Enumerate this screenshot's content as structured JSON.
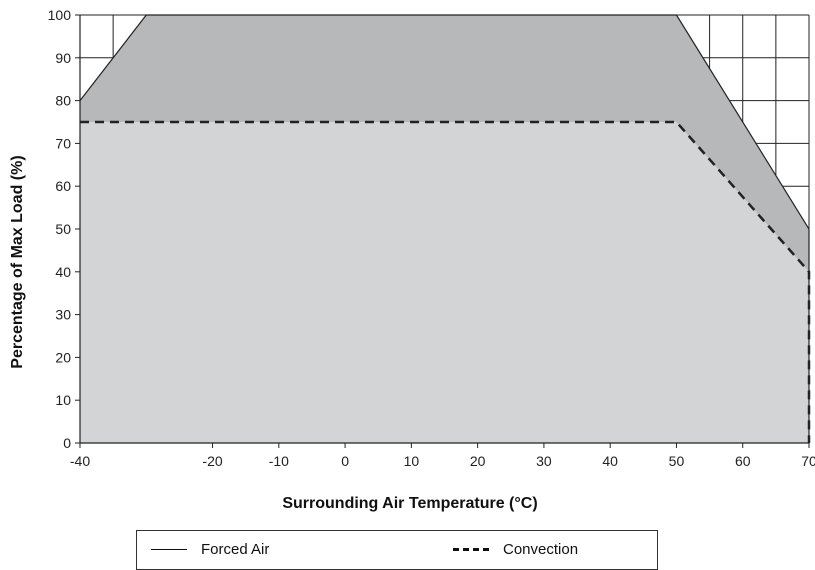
{
  "chart_data": {
    "type": "area",
    "xlabel": "Surrounding Air Temperature (°C)",
    "ylabel": "Percentage of Max Load (%)",
    "xlim": [
      -40,
      70
    ],
    "ylim": [
      0,
      100
    ],
    "x_ticks": [
      "-40",
      "-20",
      "-10",
      "0",
      "10",
      "20",
      "30",
      "40",
      "50",
      "60",
      "70"
    ],
    "x_tick_values": [
      -40,
      -20,
      -10,
      0,
      10,
      20,
      30,
      40,
      50,
      60,
      70
    ],
    "y_ticks": [
      "0",
      "10",
      "20",
      "30",
      "40",
      "50",
      "60",
      "70",
      "80",
      "90",
      "100"
    ],
    "y_tick_values": [
      0,
      10,
      20,
      30,
      40,
      50,
      60,
      70,
      80,
      90,
      100
    ],
    "grid": true,
    "legend_position": "bottom",
    "series": [
      {
        "name": "Forced Air",
        "style": "solid",
        "fill": "#b7b8ba",
        "x": [
          -40,
          -30,
          -20,
          50,
          70,
          70
        ],
        "y": [
          80,
          100,
          100,
          100,
          50,
          0
        ]
      },
      {
        "name": "Convection",
        "style": "dashed",
        "fill": "#d3d4d6",
        "x": [
          -40,
          50,
          70,
          70
        ],
        "y": [
          75,
          75,
          40,
          0
        ]
      }
    ]
  },
  "legend": {
    "forced_label": "Forced Air",
    "convection_label": "Convection"
  }
}
